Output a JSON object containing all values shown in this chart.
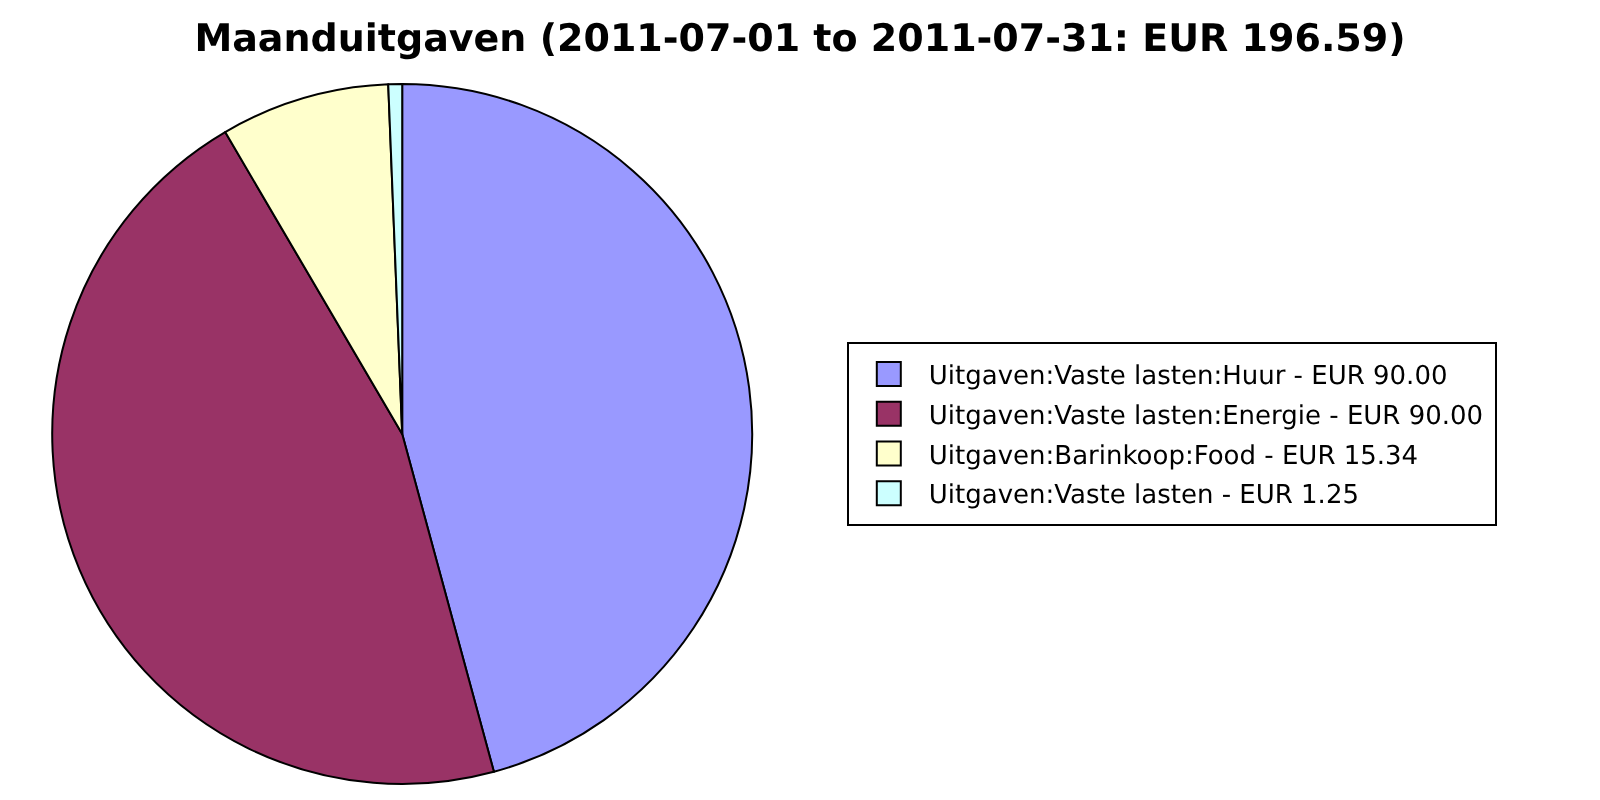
{
  "chart_data": {
    "type": "pie",
    "title": "Maanduitgaven (2011-07-01 to 2011-07-31: EUR 196.59)",
    "categories": [
      "Uitgaven:Vaste lasten:Huur - EUR 90.00",
      "Uitgaven:Vaste lasten:Energie - EUR 90.00",
      "Uitgaven:Barinkoop:Food - EUR 15.34",
      "Uitgaven:Vaste lasten - EUR 1.25"
    ],
    "values": [
      90.0,
      90.0,
      15.34,
      1.25
    ],
    "colors": [
      "#9999ff",
      "#993366",
      "#ffffcc",
      "#ccffff"
    ],
    "legend": "right"
  }
}
